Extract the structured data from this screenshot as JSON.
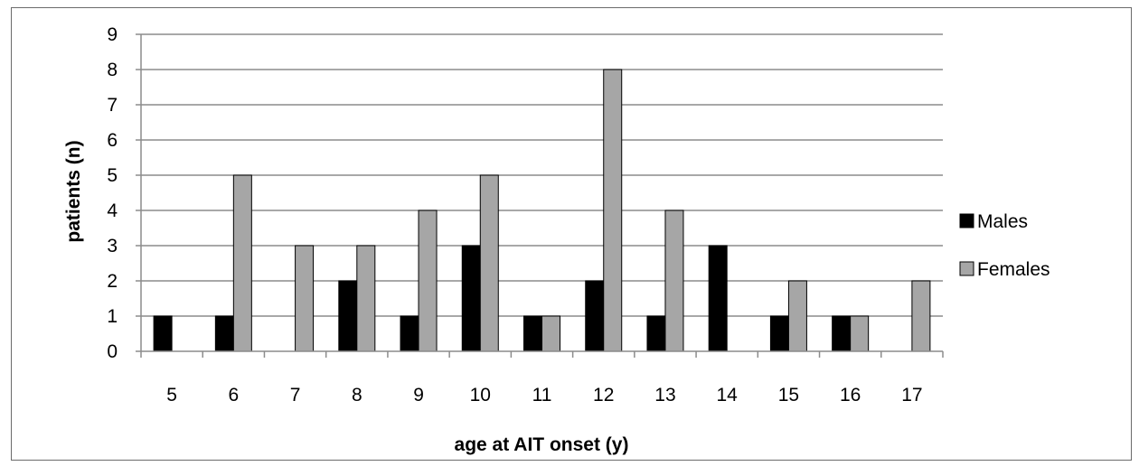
{
  "chart_data": {
    "type": "bar",
    "title": "",
    "xlabel": "age at AIT onset (y)",
    "ylabel": "patients (n)",
    "ylim": [
      0,
      9
    ],
    "yticks": [
      0,
      1,
      2,
      3,
      4,
      5,
      6,
      7,
      8,
      9
    ],
    "grid": true,
    "legend_position": "right",
    "categories": [
      "5",
      "6",
      "7",
      "8",
      "9",
      "10",
      "11",
      "12",
      "13",
      "14",
      "15",
      "16",
      "17"
    ],
    "series": [
      {
        "name": "Males",
        "color": "#000000",
        "values": [
          1,
          1,
          0,
          2,
          1,
          3,
          1,
          2,
          1,
          3,
          1,
          1,
          0
        ]
      },
      {
        "name": "Females",
        "color": "#a6a6a6",
        "values": [
          0,
          5,
          3,
          3,
          4,
          5,
          1,
          8,
          4,
          0,
          2,
          1,
          2
        ]
      }
    ]
  }
}
